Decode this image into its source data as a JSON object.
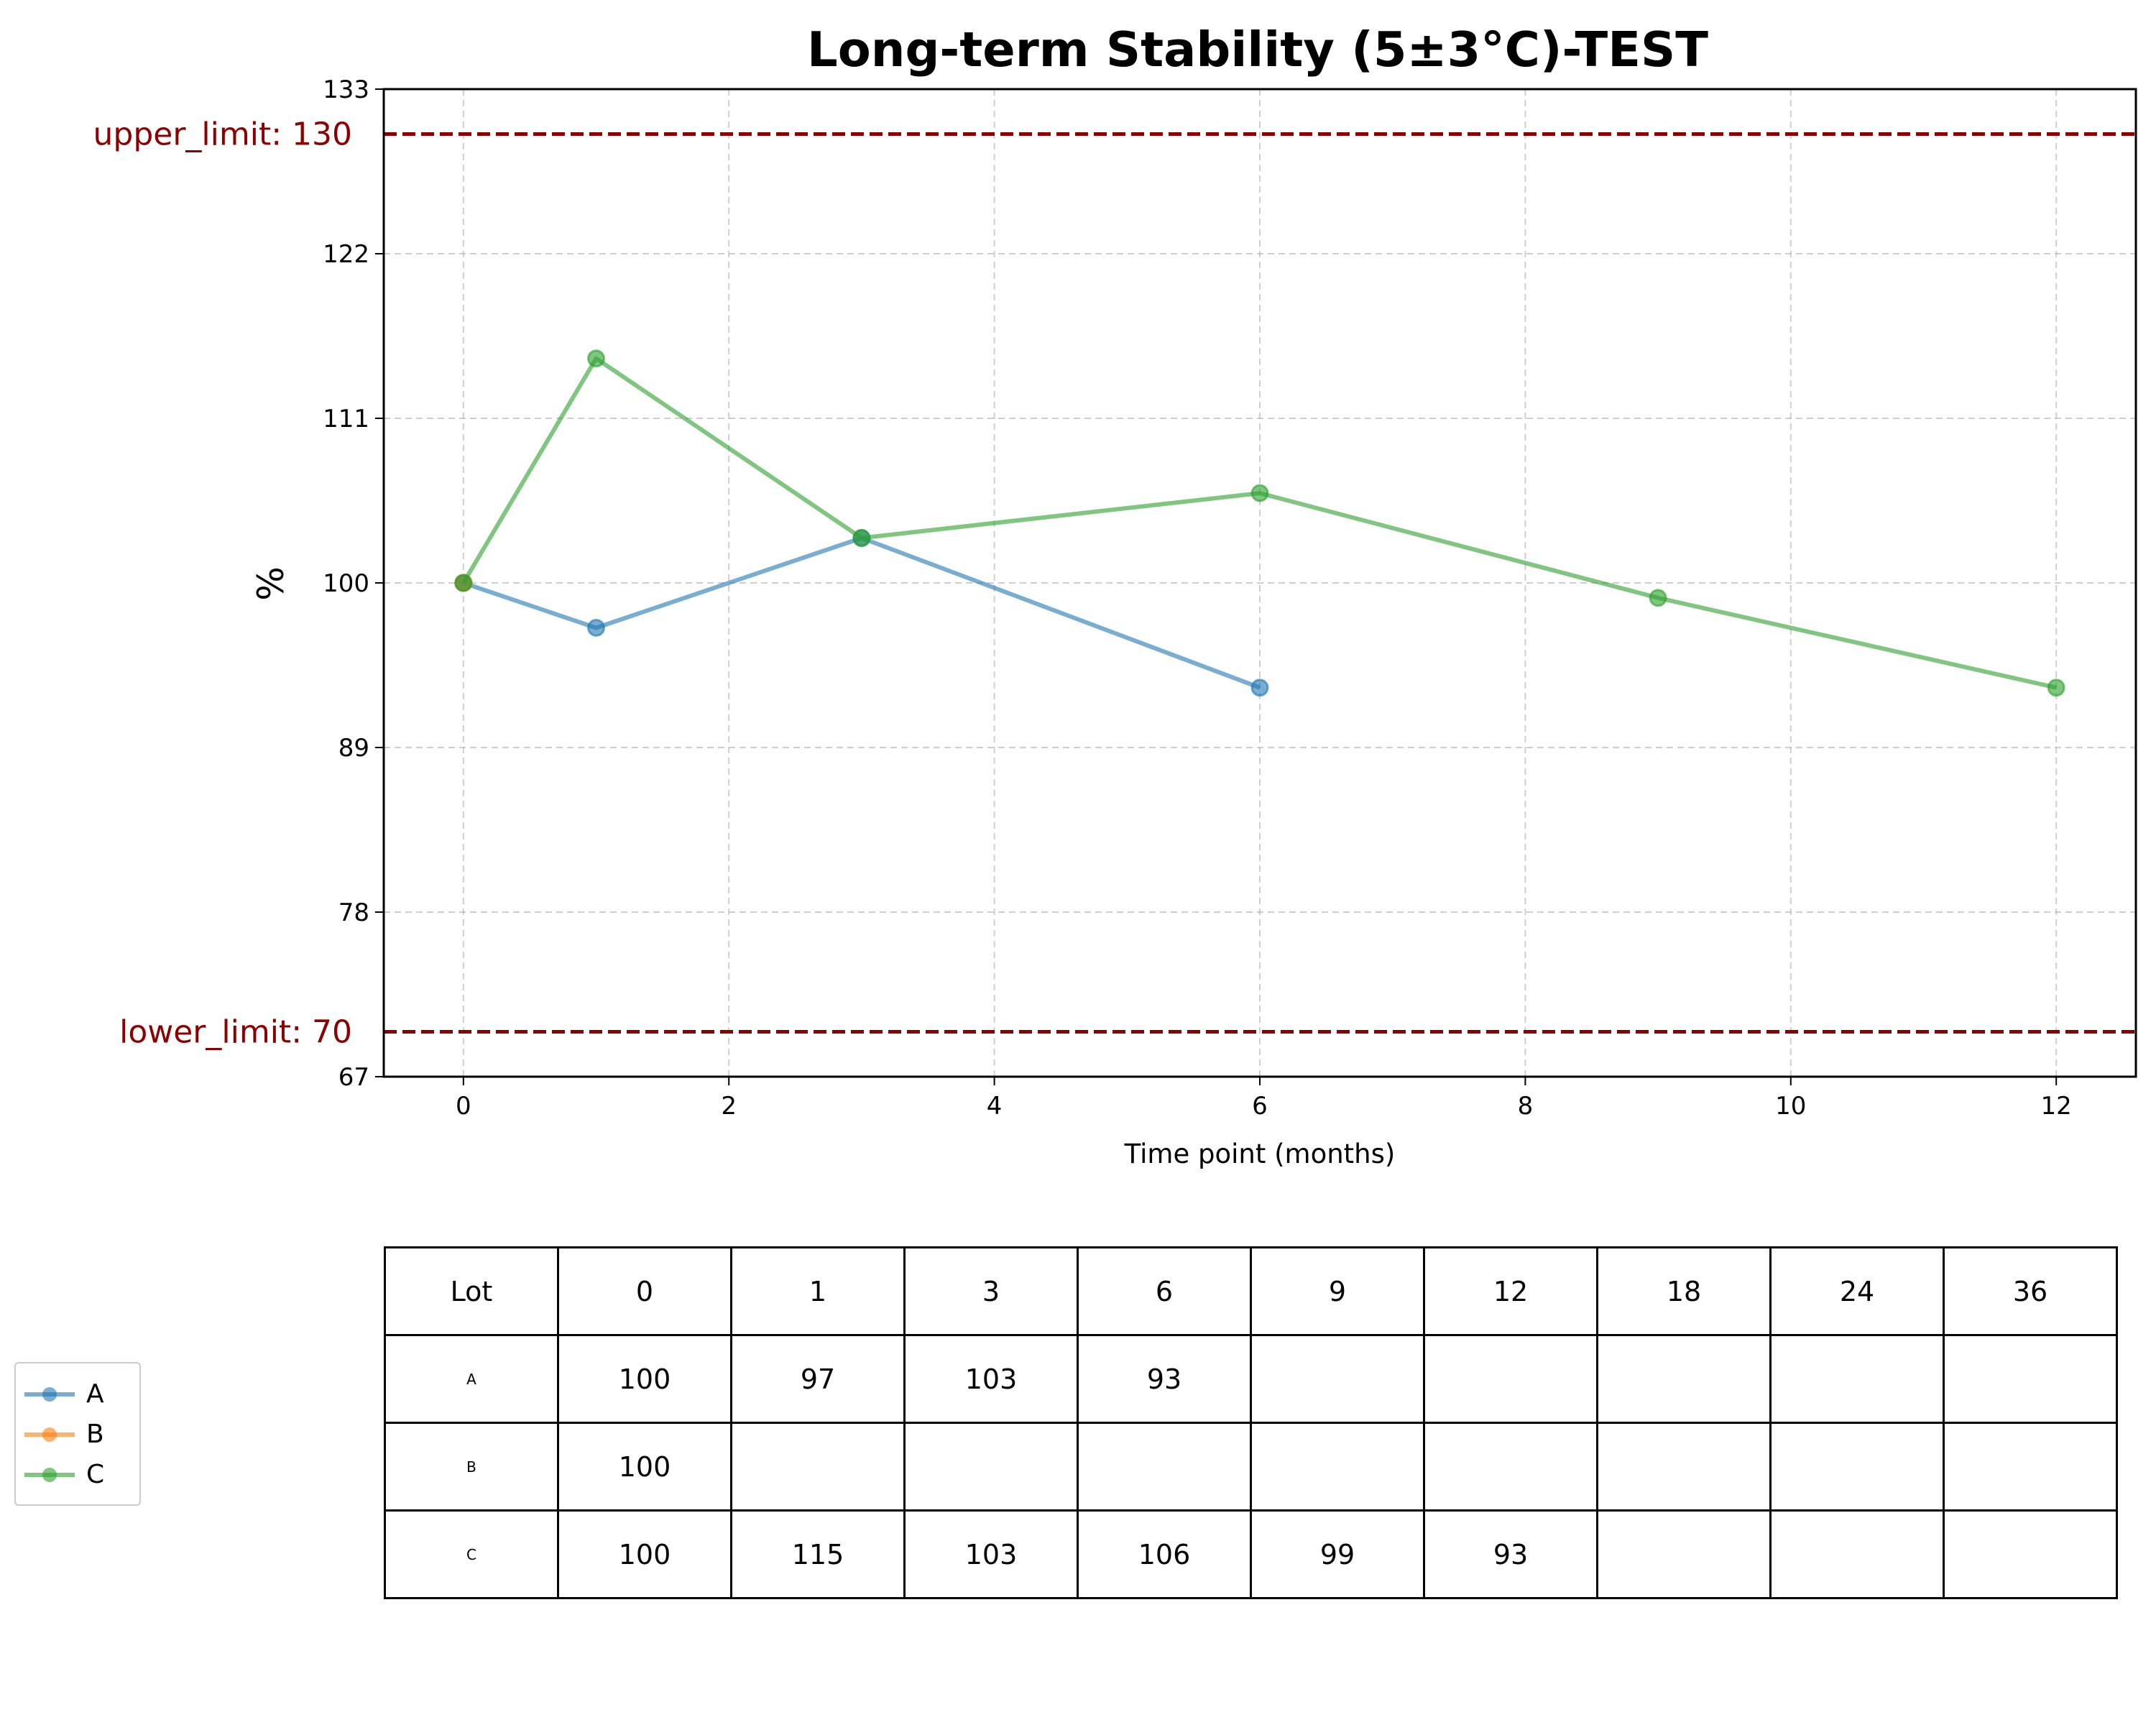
{
  "chart_data": {
    "type": "line",
    "title": "Long-term Stability (5±3°C)-TEST",
    "xlabel": "Time point (months)",
    "ylabel": "%",
    "xlim": [
      -0.6,
      12.6
    ],
    "ylim": [
      67,
      133
    ],
    "xticks": [
      0,
      2,
      4,
      6,
      8,
      10,
      12
    ],
    "yticks": [
      67,
      78,
      89,
      100,
      111,
      122,
      133
    ],
    "grid": true,
    "legend_position": "left",
    "limits": [
      {
        "name": "upper_limit",
        "label": "upper_limit: 130",
        "value": 130,
        "color": "#8b0000"
      },
      {
        "name": "lower_limit",
        "label": "lower_limit: 70",
        "value": 70,
        "color": "#8b0000"
      }
    ],
    "series": [
      {
        "name": "A",
        "color": "#1f77b4",
        "x": [
          0,
          1,
          3,
          6
        ],
        "y": [
          100,
          97,
          103,
          93
        ]
      },
      {
        "name": "B",
        "color": "#ff7f0e",
        "x": [
          0
        ],
        "y": [
          100
        ]
      },
      {
        "name": "C",
        "color": "#2ca02c",
        "x": [
          0,
          1,
          3,
          6,
          9,
          12
        ],
        "y": [
          100,
          115,
          103,
          106,
          99,
          93
        ]
      }
    ]
  },
  "table": {
    "header": [
      "Lot",
      "0",
      "1",
      "3",
      "6",
      "9",
      "12",
      "18",
      "24",
      "36"
    ],
    "rows": [
      [
        "A",
        "100",
        "97",
        "103",
        "93",
        "",
        "",
        "",
        "",
        ""
      ],
      [
        "B",
        "100",
        "",
        "",
        "",
        "",
        "",
        "",
        "",
        ""
      ],
      [
        "C",
        "100",
        "115",
        "103",
        "106",
        "99",
        "93",
        "",
        "",
        ""
      ]
    ]
  }
}
